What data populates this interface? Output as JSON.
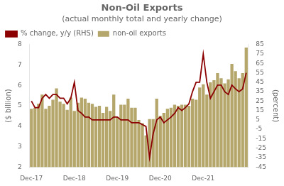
{
  "chart_data": {
    "type": "bar",
    "title": "Non-Oil Exports",
    "subtitle": "(actual monthly total and yearly change)",
    "categories": [
      "Dec-17",
      null,
      null,
      null,
      null,
      null,
      null,
      null,
      null,
      null,
      null,
      null,
      "Dec-18",
      null,
      null,
      null,
      null,
      null,
      null,
      null,
      null,
      null,
      null,
      null,
      "Dec-19",
      null,
      null,
      null,
      null,
      null,
      null,
      null,
      null,
      null,
      null,
      null,
      "Dec-20",
      null,
      null,
      null,
      null,
      null,
      null,
      null,
      null,
      null,
      null,
      null,
      "Dec-21",
      null,
      null,
      null,
      null,
      null,
      null,
      null,
      null,
      null,
      null,
      null,
      null
    ],
    "series": [
      {
        "name": "non-oil exports",
        "type": "bar",
        "color": "#b5a66b",
        "values": [
          4.85,
          4.9,
          5.1,
          5.55,
          4.85,
          5.0,
          5.3,
          5.85,
          5.2,
          5.1,
          4.8,
          5.4,
          4.75,
          5.15,
          5.4,
          5.35,
          5.15,
          5.1,
          4.95,
          5.0,
          4.65,
          4.95,
          4.75,
          5.55,
          4.45,
          5.05,
          5.05,
          5.35,
          4.9,
          4.9,
          4.3,
          4.15,
          3.55,
          4.35,
          4.35,
          5.35,
          4.5,
          4.65,
          4.85,
          4.9,
          5.05,
          5.0,
          5.05,
          5.05,
          5.0,
          5.35,
          5.3,
          5.9,
          6.05,
          5.55,
          6.15,
          6.25,
          6.6,
          6.35,
          6.1,
          6.3,
          7.05,
          6.7,
          6.35,
          6.6,
          7.85
        ]
      },
      {
        "name": "% change, y/y (RHS)",
        "type": "line",
        "color": "#8b0000",
        "axis": "y2",
        "values": [
          25,
          18,
          18,
          28,
          32,
          28,
          32,
          32,
          28,
          28,
          22,
          28,
          45,
          15,
          12,
          8,
          8,
          5,
          5,
          5,
          5,
          5,
          5,
          8,
          8,
          5,
          5,
          5,
          2,
          2,
          2,
          0,
          -2,
          -35,
          -10,
          5,
          8,
          2,
          5,
          8,
          12,
          18,
          15,
          18,
          22,
          35,
          45,
          45,
          75,
          45,
          28,
          35,
          42,
          42,
          35,
          32,
          42,
          38,
          35,
          38,
          55
        ]
      }
    ],
    "ylabel": "($ billion)",
    "y2label": "(percent)",
    "ylim": [
      2,
      8
    ],
    "yticks": [
      2,
      3,
      4,
      5,
      6,
      7,
      8
    ],
    "y2lim": [
      -45,
      85
    ],
    "y2ticks": [
      -45,
      -35,
      -25,
      -15,
      -5,
      5,
      15,
      25,
      35,
      45,
      55,
      65,
      75,
      85
    ],
    "legend": "upper left",
    "grid": false
  }
}
